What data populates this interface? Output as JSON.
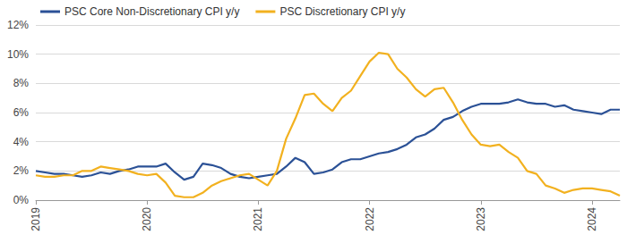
{
  "chart_data": {
    "type": "line",
    "categories": [
      "2019",
      null,
      null,
      null,
      null,
      null,
      null,
      null,
      null,
      null,
      null,
      null,
      "2020",
      null,
      null,
      null,
      null,
      null,
      null,
      null,
      null,
      null,
      null,
      null,
      "2021",
      null,
      null,
      null,
      null,
      null,
      null,
      null,
      null,
      null,
      null,
      null,
      "2022",
      null,
      null,
      null,
      null,
      null,
      null,
      null,
      null,
      null,
      null,
      null,
      "2023",
      null,
      null,
      null,
      null,
      null,
      null,
      null,
      null,
      null,
      null,
      null,
      "2024",
      null,
      null,
      null
    ],
    "series": [
      {
        "name": "PSC Core Non-Discretionary CPI y/y",
        "color": "#2b5196",
        "values": [
          2.0,
          1.9,
          1.8,
          1.8,
          1.7,
          1.6,
          1.7,
          1.9,
          1.8,
          2.0,
          2.1,
          2.3,
          2.3,
          2.3,
          2.5,
          1.9,
          1.4,
          1.6,
          2.5,
          2.4,
          2.2,
          1.8,
          1.6,
          1.5,
          1.6,
          1.7,
          1.8,
          2.3,
          2.9,
          2.6,
          1.8,
          1.9,
          2.1,
          2.6,
          2.8,
          2.8,
          3.0,
          3.2,
          3.3,
          3.5,
          3.8,
          4.3,
          4.5,
          4.9,
          5.5,
          5.7,
          6.1,
          6.4,
          6.6,
          6.6,
          6.6,
          6.7,
          6.9,
          6.7,
          6.6,
          6.6,
          6.4,
          6.5,
          6.2,
          6.1,
          6.0,
          5.9,
          6.2,
          6.2
        ]
      },
      {
        "name": "PSC Discretionary CPI y/y",
        "color": "#f2b11f",
        "values": [
          1.7,
          1.6,
          1.6,
          1.7,
          1.7,
          2.0,
          2.0,
          2.3,
          2.2,
          2.1,
          2.0,
          1.8,
          1.7,
          1.8,
          1.2,
          0.3,
          0.2,
          0.2,
          0.5,
          1.0,
          1.3,
          1.5,
          1.7,
          1.8,
          1.4,
          1.0,
          2.0,
          4.2,
          5.6,
          7.2,
          7.3,
          6.6,
          6.1,
          7.0,
          7.5,
          8.5,
          9.5,
          10.1,
          10.0,
          9.0,
          8.4,
          7.6,
          7.1,
          7.6,
          7.7,
          6.7,
          5.5,
          4.5,
          3.8,
          3.7,
          3.8,
          3.3,
          2.9,
          2.0,
          1.8,
          1.0,
          0.8,
          0.5,
          0.7,
          0.8,
          0.8,
          0.7,
          0.6,
          0.3
        ]
      }
    ],
    "ylim": [
      0,
      12
    ],
    "yticks": [
      {
        "value": 0,
        "label": "0%"
      },
      {
        "value": 2,
        "label": "2%"
      },
      {
        "value": 4,
        "label": "4%"
      },
      {
        "value": 6,
        "label": "6%"
      },
      {
        "value": 8,
        "label": "8%"
      },
      {
        "value": 10,
        "label": "10%"
      },
      {
        "value": 12,
        "label": "12%"
      }
    ],
    "grid": true,
    "legend": "upper left"
  }
}
